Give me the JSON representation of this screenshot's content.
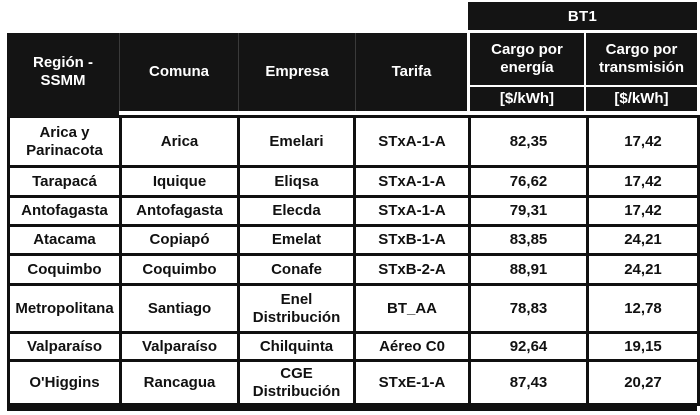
{
  "header": {
    "group_label": "BT1",
    "columns": [
      "Región -\nSSMM",
      "Comuna",
      "Empresa",
      "Tarifa",
      "Cargo por\nenergía",
      "Cargo por\ntransmisión"
    ],
    "units": [
      "[$/kWh]",
      "[$/kWh]"
    ]
  },
  "rows": [
    {
      "region": "Arica y\nParinacota",
      "comuna": "Arica",
      "empresa": "Emelari",
      "tarifa": "STxA-1-A",
      "energia": "82,35",
      "transmision": "17,42"
    },
    {
      "region": "Tarapacá",
      "comuna": "Iquique",
      "empresa": "Eliqsa",
      "tarifa": "STxA-1-A",
      "energia": "76,62",
      "transmision": "17,42"
    },
    {
      "region": "Antofagasta",
      "comuna": "Antofagasta",
      "empresa": "Elecda",
      "tarifa": "STxA-1-A",
      "energia": "79,31",
      "transmision": "17,42"
    },
    {
      "region": "Atacama",
      "comuna": "Copiapó",
      "empresa": "Emelat",
      "tarifa": "STxB-1-A",
      "energia": "83,85",
      "transmision": "24,21"
    },
    {
      "region": "Coquimbo",
      "comuna": "Coquimbo",
      "empresa": "Conafe",
      "tarifa": "STxB-2-A",
      "energia": "88,91",
      "transmision": "24,21"
    },
    {
      "region": "Metropolitana",
      "comuna": "Santiago",
      "empresa": "Enel\nDistribución",
      "tarifa": "BT_AA",
      "energia": "78,83",
      "transmision": "12,78"
    },
    {
      "region": "Valparaíso",
      "comuna": "Valparaíso",
      "empresa": "Chilquinta",
      "tarifa": "Aéreo C0",
      "energia": "92,64",
      "transmision": "19,15"
    },
    {
      "region": "O'Higgins",
      "comuna": "Rancagua",
      "empresa": "CGE\nDistribución",
      "tarifa": "STxE-1-A",
      "energia": "87,43",
      "transmision": "20,27"
    }
  ],
  "colors": {
    "table_black": "#141414",
    "border_black": "#101010",
    "cell_white": "#ffffff"
  }
}
